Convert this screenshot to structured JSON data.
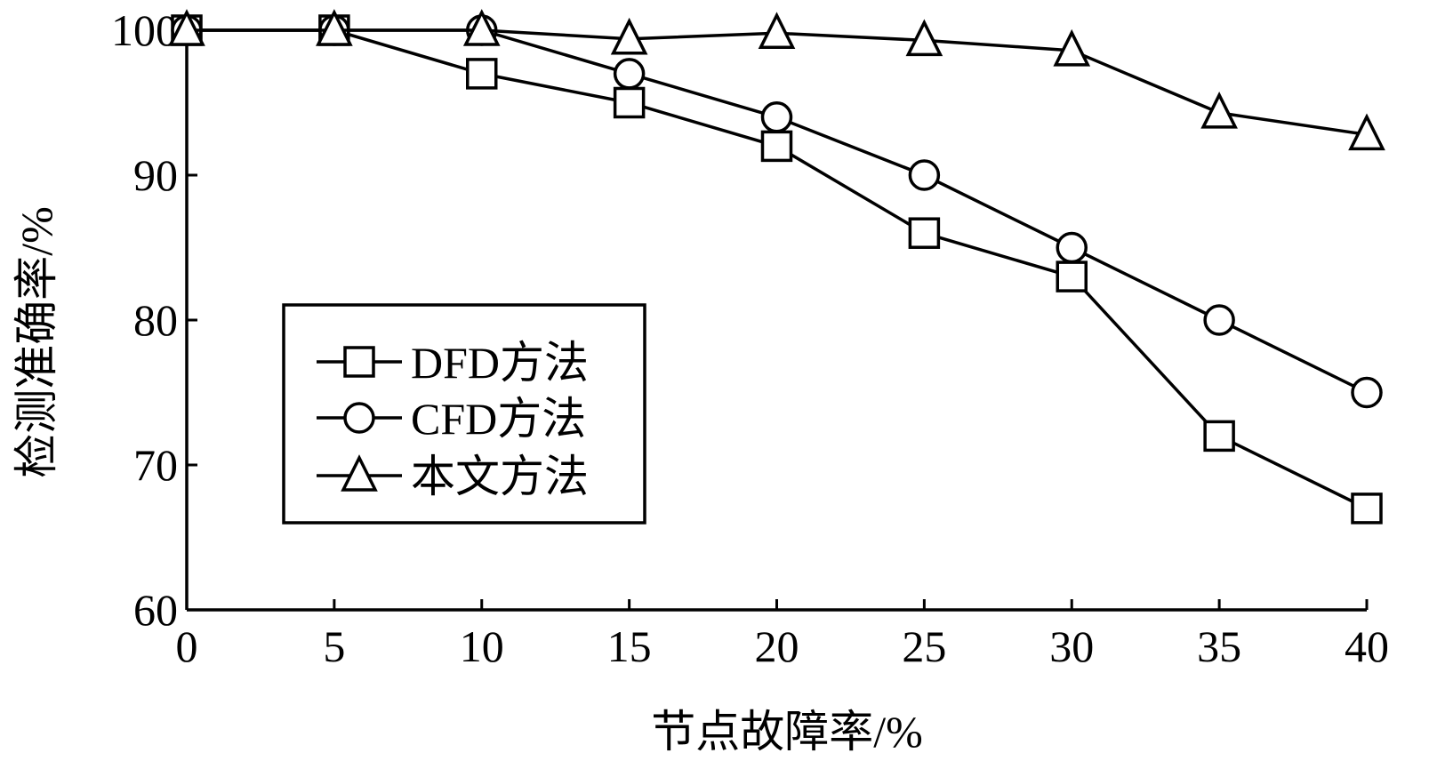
{
  "chart_data": {
    "type": "line",
    "xlabel": "节点故障率/%",
    "ylabel": "检测准确率/%",
    "x": [
      0,
      5,
      10,
      15,
      20,
      25,
      30,
      35,
      40
    ],
    "xlim": [
      0,
      40
    ],
    "ylim": [
      60,
      100
    ],
    "xticks": [
      0,
      5,
      10,
      15,
      20,
      25,
      30,
      35,
      40
    ],
    "yticks": [
      60,
      70,
      80,
      90,
      100
    ],
    "grid": false,
    "legend_position": "center-left",
    "series": [
      {
        "name": "DFD方法",
        "marker": "square",
        "values": [
          100,
          100,
          97,
          95,
          92,
          86,
          83,
          72,
          67
        ]
      },
      {
        "name": "CFD方法",
        "marker": "circle",
        "values": [
          100,
          100,
          100,
          97,
          94,
          90,
          85,
          80,
          75
        ]
      },
      {
        "name": "本文方法",
        "marker": "triangle",
        "values": [
          100,
          100,
          100,
          99.4,
          99.8,
          99.3,
          98.6,
          94.3,
          92.8
        ]
      }
    ]
  }
}
